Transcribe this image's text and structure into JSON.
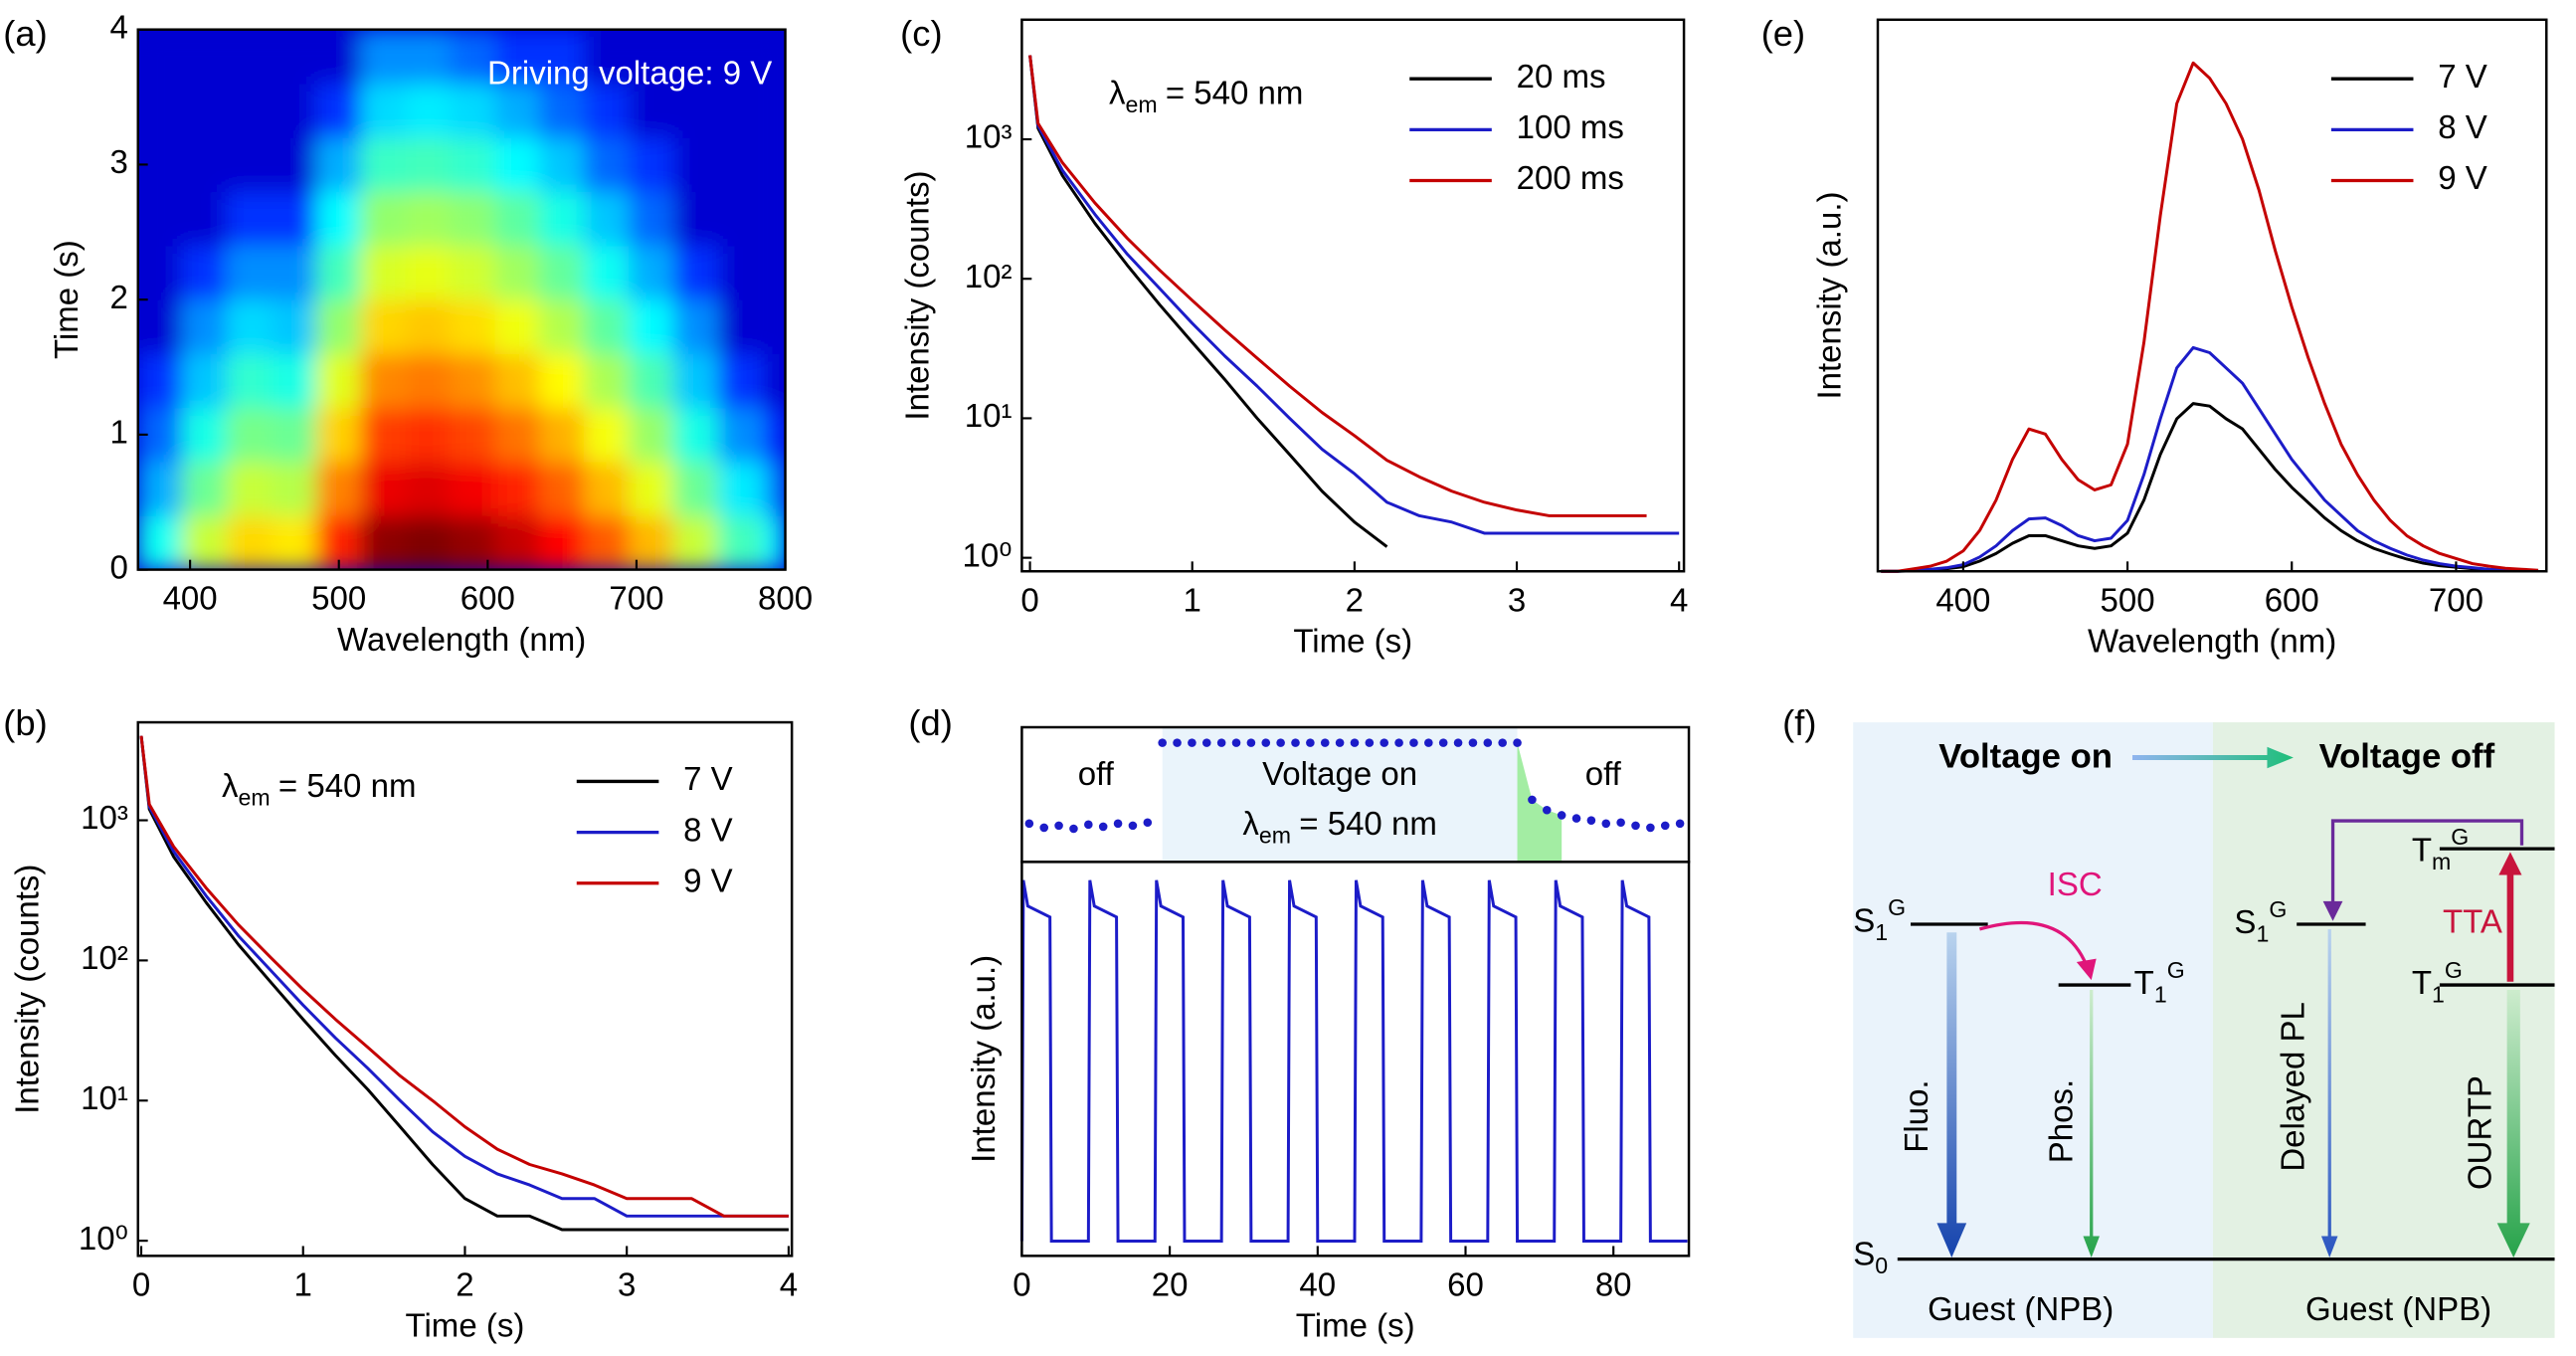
{
  "chart_data": [
    {
      "type": "heatmap",
      "label": "(a)",
      "xlabel": "Wavelength (nm)",
      "ylabel": "Time (s)",
      "annotation": "Driving voltage: 9 V",
      "xbins": [
        365,
        395,
        425,
        455,
        485,
        515,
        545,
        575,
        605,
        635,
        665,
        695,
        725,
        755,
        785,
        800
      ],
      "ybins": [
        0,
        0.4,
        0.8,
        1.2,
        1.6,
        2.0,
        2.4,
        2.8,
        3.2,
        3.6,
        4.0
      ],
      "z": [
        [
          10,
          40,
          80,
          70,
          300,
          900,
          1000,
          850,
          600,
          380,
          200,
          100,
          40,
          15,
          8
        ],
        [
          5,
          20,
          40,
          35,
          150,
          450,
          500,
          425,
          300,
          190,
          100,
          50,
          20,
          8,
          4
        ],
        [
          3,
          11,
          22,
          20,
          84,
          252,
          280,
          238,
          168,
          106,
          56,
          28,
          11,
          4,
          2
        ],
        [
          2,
          6,
          13,
          11,
          48,
          144,
          160,
          136,
          96,
          61,
          32,
          16,
          6,
          2,
          1
        ],
        [
          1,
          4,
          7,
          6,
          27,
          81,
          90,
          77,
          54,
          34,
          18,
          9,
          4,
          1,
          1
        ],
        [
          1,
          2,
          4,
          4,
          15,
          45,
          50,
          43,
          30,
          19,
          10,
          5,
          2,
          1,
          1
        ],
        [
          1,
          1,
          2,
          2,
          9,
          27,
          30,
          26,
          18,
          11,
          6,
          3,
          1,
          1,
          1
        ],
        [
          1,
          1,
          1,
          1,
          5,
          14,
          15,
          13,
          9,
          6,
          3,
          2,
          1,
          1,
          1
        ],
        [
          1,
          1,
          1,
          1,
          2,
          7,
          8,
          7,
          5,
          3,
          2,
          1,
          1,
          1,
          1
        ],
        [
          1,
          1,
          1,
          1,
          1,
          4,
          4,
          3,
          2,
          2,
          1,
          1,
          1,
          1,
          1
        ]
      ],
      "colormap": "jet",
      "log_color": true,
      "clim": [
        1,
        1000
      ],
      "xlim": [
        365,
        800
      ],
      "ylim": [
        0,
        4
      ],
      "xticks": [
        400,
        500,
        600,
        700,
        800
      ],
      "yticks": [
        0,
        1,
        2,
        3,
        4
      ]
    },
    {
      "type": "line",
      "label": "(b)",
      "log_y": true,
      "xlabel": "Time (s)",
      "ylabel": "Intensity (counts)",
      "annotation": {
        "symbol": "λ",
        "sub": "em",
        "text": "= 540 nm"
      },
      "x": [
        0,
        0.05,
        0.2,
        0.4,
        0.6,
        0.8,
        1,
        1.2,
        1.4,
        1.6,
        1.8,
        2,
        2.2,
        2.4,
        2.6,
        2.8,
        3,
        3.2,
        3.4,
        3.6,
        3.8,
        4
      ],
      "series": [
        {
          "name": "7 V",
          "color": "#000000",
          "values": [
            4000,
            1200,
            550,
            260,
            130,
            70,
            38,
            21,
            12,
            6.5,
            3.5,
            2,
            1.5,
            1.5,
            1.2,
            1.2,
            1.2,
            1.2,
            1.2,
            1.2,
            1.2,
            1.2
          ]
        },
        {
          "name": "8 V",
          "color": "#1c1cc8",
          "values": [
            4000,
            1250,
            600,
            290,
            150,
            85,
            48,
            28,
            17,
            10,
            6,
            4,
            3,
            2.5,
            2,
            2,
            1.5,
            1.5,
            1.5,
            1.5,
            1.5,
            1.5
          ]
        },
        {
          "name": "9 V",
          "color": "#c40000",
          "values": [
            4000,
            1300,
            650,
            330,
            180,
            105,
            62,
            38,
            24,
            15,
            10,
            6.5,
            4.5,
            3.5,
            3,
            2.5,
            2,
            2,
            2,
            1.5,
            1.5,
            1.5
          ]
        }
      ],
      "xlim": [
        -0.02,
        4.02
      ],
      "ylim": [
        0.78,
        5000
      ],
      "xticks": [
        0,
        1,
        2,
        3,
        4
      ],
      "yticks": [
        {
          "value": 1,
          "label": "10⁰"
        },
        {
          "value": 10,
          "label": "10¹"
        },
        {
          "value": 100,
          "label": "10²"
        },
        {
          "value": 1000,
          "label": "10³"
        }
      ],
      "legend": "upper right"
    },
    {
      "type": "line",
      "label": "(c)",
      "log_y": true,
      "xlabel": "Time (s)",
      "ylabel": "Intensity (counts)",
      "annotation": {
        "symbol": "λ",
        "sub": "em",
        "text": "= 540 nm"
      },
      "x": [
        0,
        0.05,
        0.2,
        0.4,
        0.6,
        0.8,
        1,
        1.2,
        1.4,
        1.6,
        1.8,
        2,
        2.2,
        2.4,
        2.6,
        2.8,
        3,
        3.2,
        3.4,
        3.6,
        3.8,
        4
      ],
      "series": [
        {
          "name": "20 ms",
          "color": "#000000",
          "values": [
            4000,
            1200,
            550,
            250,
            125,
            65,
            35,
            19,
            10,
            5.5,
            3,
            1.8,
            1.2,
            null,
            null,
            null,
            null,
            null,
            null,
            null,
            null,
            null
          ]
        },
        {
          "name": "100 ms",
          "color": "#1c1cc8",
          "values": [
            4000,
            1250,
            600,
            290,
            150,
            85,
            48,
            28,
            17,
            10,
            6,
            4,
            2.5,
            2,
            1.8,
            1.5,
            1.5,
            1.5,
            1.5,
            1.5,
            1.5,
            1.5
          ]
        },
        {
          "name": "200 ms",
          "color": "#c40000",
          "values": [
            4000,
            1300,
            680,
            350,
            195,
            115,
            70,
            43,
            27,
            17,
            11,
            7.5,
            5,
            3.8,
            3,
            2.5,
            2.2,
            2,
            2,
            2,
            2,
            null
          ]
        }
      ],
      "xlim": [
        -0.05,
        4.03
      ],
      "ylim": [
        0.8,
        7200
      ],
      "xticks": [
        0,
        1,
        2,
        3,
        4
      ],
      "yticks": [
        {
          "value": 1,
          "label": "10⁰"
        },
        {
          "value": 10,
          "label": "10¹"
        },
        {
          "value": 100,
          "label": "10²"
        },
        {
          "value": 1000,
          "label": "10³"
        }
      ],
      "legend": "upper right"
    },
    {
      "type": "line",
      "label": "(d)",
      "xlabel": "Time (s)",
      "ylabel": "Intensity (a.u.)",
      "color": "#1c1cc8",
      "x": [
        0,
        0.2,
        0.8,
        3.8,
        4.0,
        9,
        9.2,
        9.8,
        12.8,
        13.0,
        18,
        18.2,
        18.8,
        21.8,
        22.0,
        27,
        27.2,
        27.8,
        30.8,
        31.0,
        36,
        36.2,
        36.8,
        39.8,
        40.0,
        45,
        45.2,
        45.8,
        48.8,
        49.0,
        54,
        54.2,
        54.8,
        57.8,
        58.0,
        63,
        63.2,
        63.8,
        66.8,
        67.0,
        72,
        72.2,
        72.8,
        75.8,
        76.0,
        81,
        81.2,
        81.8,
        84.8,
        85.0,
        90
      ],
      "values": [
        0.02,
        1.0,
        0.93,
        0.9,
        0.02,
        0.02,
        1.0,
        0.93,
        0.9,
        0.02,
        0.02,
        1.0,
        0.93,
        0.9,
        0.02,
        0.02,
        1.0,
        0.93,
        0.9,
        0.02,
        0.02,
        1.0,
        0.93,
        0.9,
        0.02,
        0.02,
        1.0,
        0.93,
        0.9,
        0.02,
        0.02,
        1.0,
        0.93,
        0.9,
        0.02,
        0.02,
        1.0,
        0.93,
        0.9,
        0.02,
        0.02,
        1.0,
        0.93,
        0.9,
        0.02,
        0.02,
        1.0,
        0.93,
        0.9,
        0.02,
        0.02
      ],
      "xlim": [
        0,
        90.2
      ],
      "ylim": [
        -0.02,
        1.05
      ],
      "xticks": [
        0,
        20,
        40,
        60,
        80
      ],
      "strip": {
        "x": [
          1,
          3,
          5,
          7,
          9,
          11,
          13,
          15,
          17,
          19,
          21,
          23,
          25,
          27,
          29,
          31,
          33,
          35,
          37,
          39,
          41,
          43,
          45,
          47,
          49,
          51,
          53,
          55,
          57,
          59,
          61,
          63,
          65,
          67,
          69,
          71,
          73,
          75,
          77,
          79,
          81,
          83,
          85,
          87,
          89
        ],
        "values": [
          0.22,
          0.18,
          0.2,
          0.17,
          0.21,
          0.19,
          0.22,
          0.2,
          0.23,
          1,
          1,
          1,
          1,
          1,
          1,
          1,
          1,
          1,
          1,
          1,
          1,
          1,
          1,
          1,
          1,
          1,
          1,
          1,
          1,
          1,
          1,
          1,
          1,
          1,
          0.45,
          0.35,
          0.3,
          0.27,
          0.25,
          0.22,
          0.23,
          0.2,
          0.18,
          0.2,
          0.22
        ],
        "ylim": [
          -0.15,
          1.15
        ],
        "color": "#1c1cc8",
        "labels": [
          "off",
          "Voltage on",
          "off"
        ],
        "emission": {
          "symbol": "λ",
          "sub": "em",
          "text": "= 540 nm"
        }
      }
    },
    {
      "type": "line",
      "label": "(e)",
      "xlabel": "Wavelength (nm)",
      "ylabel": "Intensity (a.u.)",
      "x": [
        350,
        360,
        370,
        380,
        390,
        400,
        410,
        420,
        430,
        440,
        450,
        460,
        470,
        480,
        490,
        500,
        510,
        520,
        530,
        540,
        550,
        560,
        570,
        580,
        590,
        600,
        610,
        620,
        630,
        640,
        650,
        660,
        670,
        680,
        690,
        700,
        710,
        720,
        730,
        740,
        750
      ],
      "series": [
        {
          "name": "7 V",
          "color": "#000000",
          "values": [
            0,
            0,
            0.001,
            0.003,
            0.005,
            0.009,
            0.02,
            0.035,
            0.055,
            0.07,
            0.07,
            0.06,
            0.05,
            0.045,
            0.05,
            0.075,
            0.14,
            0.23,
            0.3,
            0.33,
            0.325,
            0.3,
            0.28,
            0.24,
            0.2,
            0.165,
            0.135,
            0.105,
            0.08,
            0.06,
            0.045,
            0.034,
            0.024,
            0.016,
            0.011,
            0.008,
            0.005,
            0.003,
            0.002,
            0.0015,
            0.001
          ]
        },
        {
          "name": "8 V",
          "color": "#1c1cc8",
          "values": [
            0,
            0,
            0.002,
            0.004,
            0.007,
            0.013,
            0.028,
            0.05,
            0.08,
            0.103,
            0.105,
            0.09,
            0.07,
            0.06,
            0.065,
            0.1,
            0.19,
            0.3,
            0.4,
            0.44,
            0.43,
            0.4,
            0.37,
            0.32,
            0.27,
            0.22,
            0.18,
            0.14,
            0.11,
            0.08,
            0.06,
            0.045,
            0.032,
            0.022,
            0.015,
            0.01,
            0.007,
            0.004,
            0.003,
            0.002,
            0.001
          ]
        },
        {
          "name": "9 V",
          "color": "#c40000",
          "values": [
            0,
            0,
            0.005,
            0.01,
            0.02,
            0.04,
            0.08,
            0.14,
            0.22,
            0.28,
            0.27,
            0.22,
            0.18,
            0.16,
            0.17,
            0.25,
            0.45,
            0.7,
            0.92,
            1.0,
            0.97,
            0.92,
            0.85,
            0.75,
            0.63,
            0.52,
            0.42,
            0.33,
            0.25,
            0.19,
            0.14,
            0.1,
            0.07,
            0.05,
            0.035,
            0.025,
            0.015,
            0.01,
            0.006,
            0.004,
            0.002
          ]
        }
      ],
      "xlim": [
        348,
        755
      ],
      "ylim": [
        0,
        1.085
      ],
      "xticks": [
        400,
        500,
        600,
        700
      ],
      "legend": "upper right"
    }
  ],
  "diagram": {
    "label": "(f)",
    "header": [
      "Voltage on",
      "Voltage off"
    ],
    "states": [
      {
        "base": "S",
        "sub": "1",
        "sup": "G"
      },
      {
        "base": "T",
        "sub": "1",
        "sup": "G"
      },
      {
        "base": "S",
        "sub": "1",
        "sup": "G"
      },
      {
        "base": "T",
        "sub": "m",
        "sup": "G"
      },
      {
        "base": "T",
        "sub": "1",
        "sup": "G"
      },
      {
        "base": "S",
        "sub": "0"
      }
    ],
    "processes": [
      "ISC",
      "Fluo.",
      "Phos.",
      "Delayed PL",
      "TTA",
      "OURTP"
    ],
    "footer": [
      "Guest (NPB)",
      "Guest (NPB)"
    ]
  }
}
